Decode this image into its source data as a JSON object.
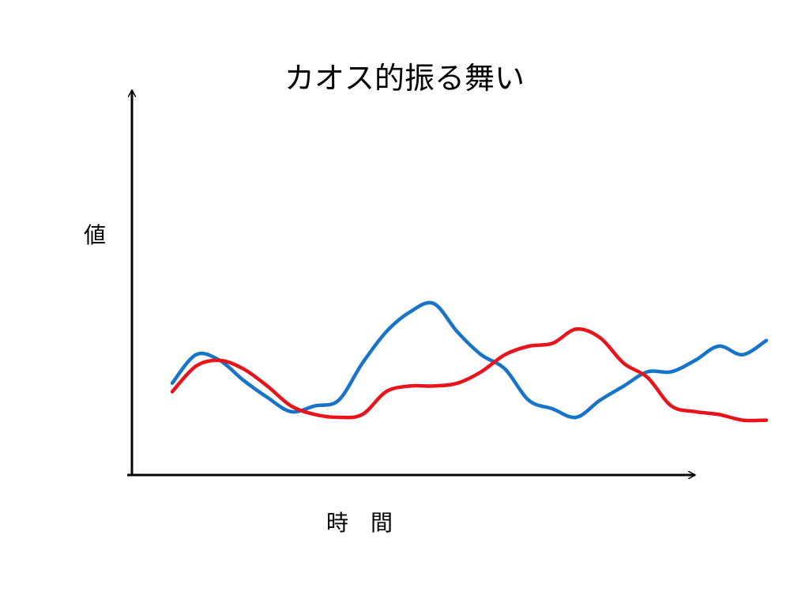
{
  "chart_data": {
    "type": "line",
    "title": "カオス的振る舞い",
    "xlabel": "時　間",
    "ylabel": "値",
    "xlim": [
      0,
      100
    ],
    "ylim": [
      0,
      100
    ],
    "grid": false,
    "legend": "none",
    "x": [
      0,
      4,
      8,
      12,
      16,
      20,
      24,
      28,
      32,
      36,
      40,
      44,
      48,
      52,
      56,
      60,
      64,
      68,
      72,
      76,
      80,
      84,
      88,
      92,
      96,
      100
    ],
    "series": [
      {
        "color": "#1874c8",
        "values": [
          32,
          42,
          40,
          33,
          27,
          22,
          24,
          26,
          39,
          50,
          57,
          60,
          50,
          42,
          37,
          26,
          23,
          20,
          26,
          31,
          36,
          36,
          40,
          45,
          42,
          47
        ]
      },
      {
        "color": "#e8141c",
        "values": [
          29,
          38,
          40,
          37,
          31,
          24,
          21,
          20,
          21,
          29,
          31,
          31,
          32,
          36,
          42,
          45,
          46,
          51,
          48,
          39,
          34,
          24,
          22,
          21,
          19,
          19
        ]
      }
    ]
  }
}
